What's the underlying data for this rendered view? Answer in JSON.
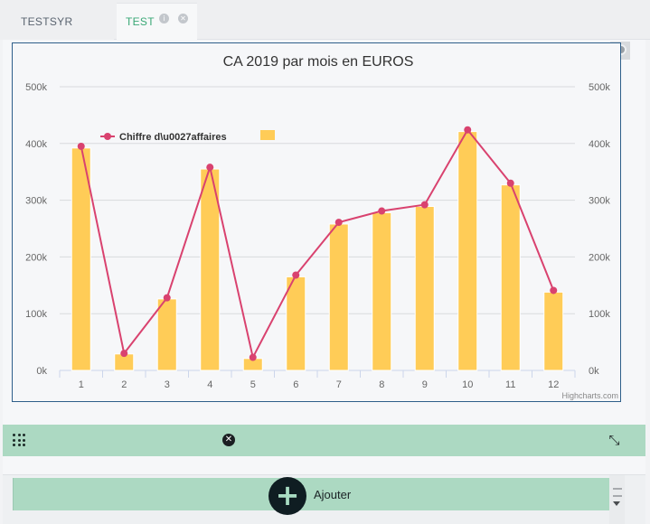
{
  "tabs": [
    {
      "label": "TESTSYR"
    },
    {
      "label": "TEST",
      "icons": [
        "info-icon",
        "close-icon"
      ]
    }
  ],
  "chart_data": {
    "type": "bar+line",
    "title": "CA 2019 par mois en EUROS",
    "categories": [
      "1",
      "2",
      "3",
      "4",
      "5",
      "6",
      "7",
      "8",
      "9",
      "10",
      "11",
      "12"
    ],
    "series": [
      {
        "name": "Chiffre d\\u0027affaires",
        "type": "line",
        "color": "#d9426f",
        "values": [
          395000,
          30000,
          128000,
          358000,
          23000,
          168000,
          261000,
          281000,
          292000,
          424000,
          330000,
          141000
        ]
      },
      {
        "name": "",
        "type": "bar",
        "color": "#ffcc57",
        "values": [
          392000,
          29000,
          126000,
          355000,
          21000,
          165000,
          258000,
          278000,
          289000,
          421000,
          327000,
          138000
        ]
      }
    ],
    "y_ticks": [
      "0k",
      "100k",
      "200k",
      "300k",
      "400k",
      "500k"
    ],
    "ylim": [
      0,
      500000
    ],
    "credit": "Highcharts.com",
    "legend_position": "top-left",
    "grid": true
  },
  "add_bar": {
    "label": "Ajouter"
  },
  "colors": {
    "accent_green": "#acd9c2",
    "tab_active_text": "#3aa876"
  }
}
